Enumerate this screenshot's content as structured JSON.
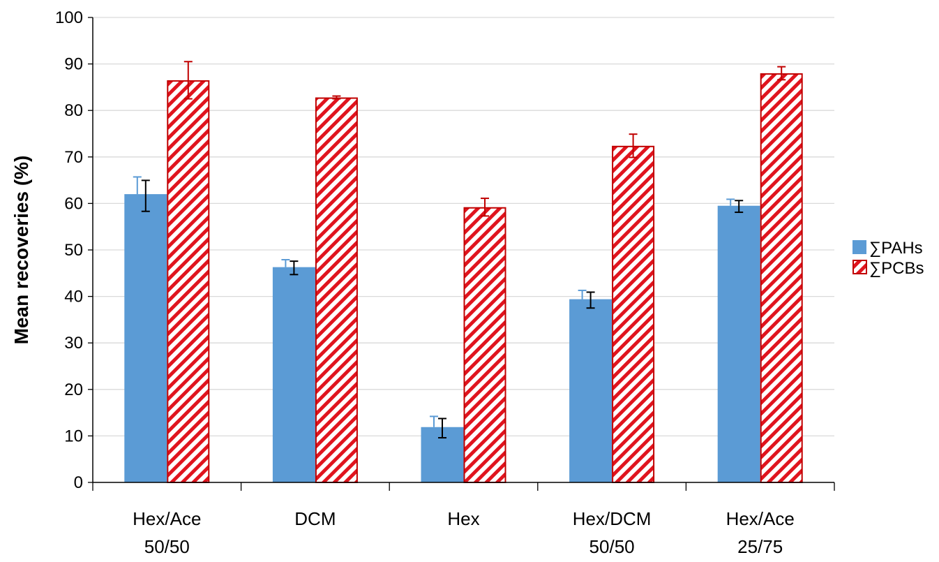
{
  "chart_data": {
    "type": "bar",
    "title": "",
    "xlabel": "",
    "ylabel": "Mean recoveries (%)",
    "ylim": [
      0,
      100
    ],
    "yticks": [
      0,
      10,
      20,
      30,
      40,
      50,
      60,
      70,
      80,
      90,
      100
    ],
    "grid": true,
    "legend_position": "right",
    "categories": [
      [
        "Hex/Ace",
        "50/50"
      ],
      [
        "DCM"
      ],
      [
        "Hex"
      ],
      [
        "Hex/DCM",
        "50/50"
      ],
      [
        "Hex/Ace",
        "25/75"
      ]
    ],
    "series": [
      {
        "name": "∑PAHs",
        "values": [
          62,
          46.3,
          11.9,
          39.4,
          59.5
        ],
        "error": [
          3.7,
          1.6,
          2.3,
          1.9,
          1.4
        ],
        "color": "#5b9bd5",
        "pattern": "solid"
      },
      {
        "name": "∑PCBs",
        "values": [
          86.5,
          82.8,
          59.2,
          72.4,
          88
        ],
        "error": [
          4.0,
          0.3,
          1.9,
          2.5,
          1.4
        ],
        "color": "#c00000",
        "pattern": "diagonal-hatch"
      }
    ]
  }
}
